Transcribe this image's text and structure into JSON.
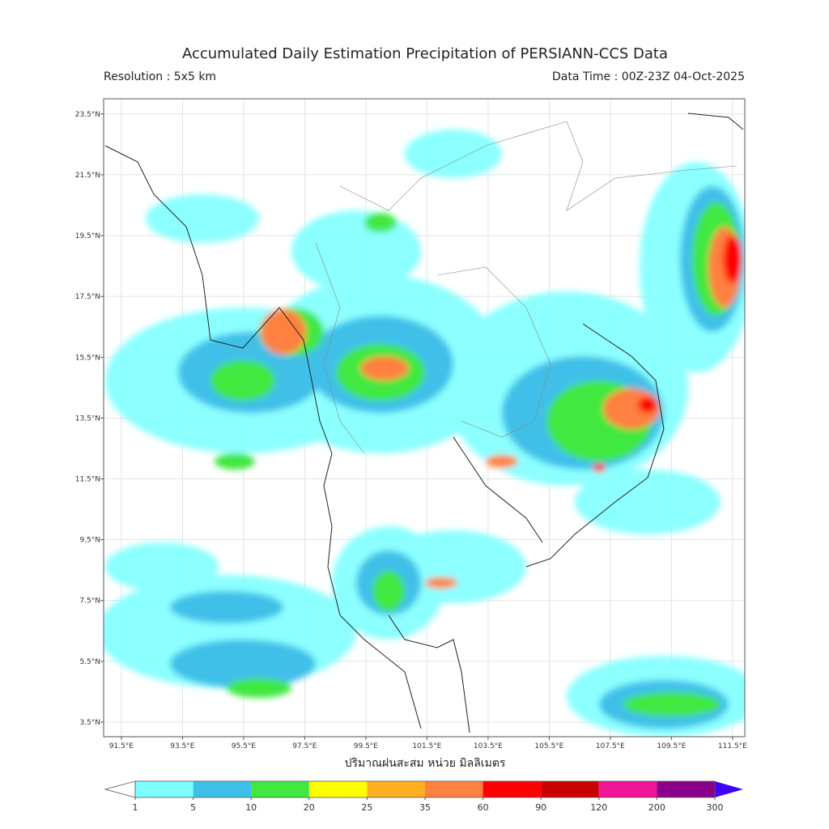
{
  "map": {
    "title": "Accumulated Daily Estimation Precipitation of PERSIANN-CCS Data",
    "subtitle_left": "Resolution : 5x5 km",
    "subtitle_right": "Data Time : 00Z-23Z 04-Oct-2025",
    "xlabel": "ปริมาณฝนสะสม หน่วย มิลลิเมตร",
    "xlim": [
      90.92,
      111.9
    ],
    "ylim": [
      3.02,
      24.0
    ],
    "grid": true,
    "xticks": [
      {
        "value": 91.5,
        "label": "91.5°E"
      },
      {
        "value": 93.5,
        "label": "93.5°E"
      },
      {
        "value": 95.5,
        "label": "95.5°E"
      },
      {
        "value": 97.5,
        "label": "97.5°E"
      },
      {
        "value": 99.5,
        "label": "99.5°E"
      },
      {
        "value": 101.5,
        "label": "101.5°E"
      },
      {
        "value": 103.5,
        "label": "103.5°E"
      },
      {
        "value": 105.5,
        "label": "105.5°E"
      },
      {
        "value": 107.5,
        "label": "107.5°E"
      },
      {
        "value": 109.5,
        "label": "109.5°E"
      },
      {
        "value": 111.5,
        "label": "111.5°E"
      }
    ],
    "yticks": [
      {
        "value": 3.5,
        "label": "3.5°N"
      },
      {
        "value": 5.5,
        "label": "5.5°N"
      },
      {
        "value": 7.5,
        "label": "7.5°N"
      },
      {
        "value": 9.5,
        "label": "9.5°N"
      },
      {
        "value": 11.5,
        "label": "11.5°N"
      },
      {
        "value": 13.5,
        "label": "13.5°N"
      },
      {
        "value": 15.5,
        "label": "15.5°N"
      },
      {
        "value": 17.5,
        "label": "17.5°N"
      },
      {
        "value": 19.5,
        "label": "19.5°N"
      },
      {
        "value": 21.5,
        "label": "21.5°N"
      },
      {
        "value": 23.5,
        "label": "23.5°N"
      }
    ],
    "colorbar": {
      "bounds": [
        1,
        5,
        10,
        20,
        25,
        35,
        60,
        90,
        120,
        200,
        300
      ],
      "colors": [
        "#80ffff",
        "#3fc0e8",
        "#40e840",
        "#ffff00",
        "#ffb020",
        "#ff8040",
        "#ff0000",
        "#c80000",
        "#f01496",
        "#8b008b"
      ],
      "under_color": "#ffffff",
      "over_color": "#4000ff"
    }
  }
}
